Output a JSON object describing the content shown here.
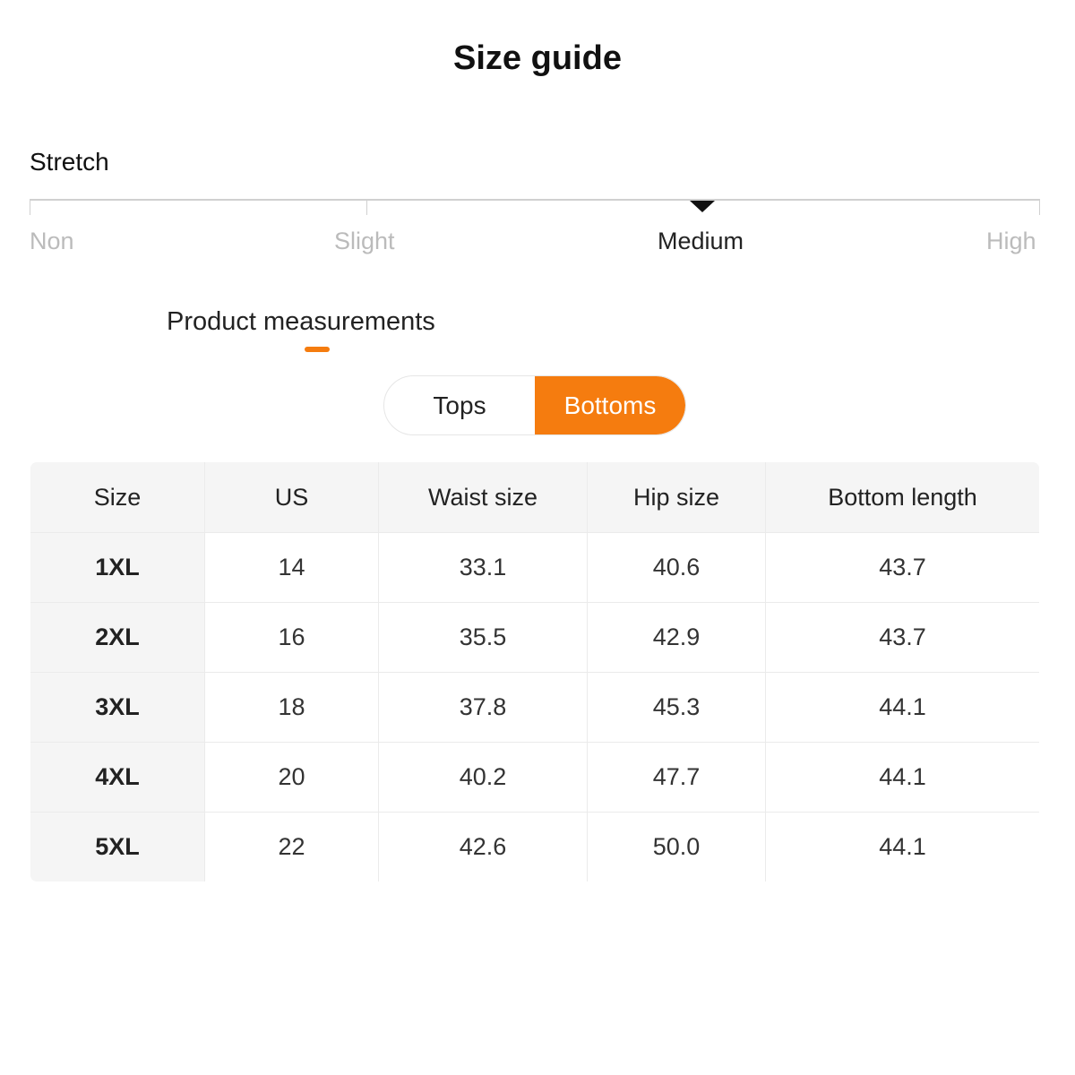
{
  "title": "Size guide",
  "stretch": {
    "label": "Stretch",
    "levels": [
      "Non",
      "Slight",
      "Medium",
      "High"
    ],
    "selected": "Medium"
  },
  "tabs": {
    "product_measurements": "Product measurements"
  },
  "toggle": {
    "options": [
      "Tops",
      "Bottoms"
    ],
    "selected": "Bottoms"
  },
  "colors": {
    "accent": "#f57c0f"
  },
  "table": {
    "headers": [
      "Size",
      "US",
      "Waist size",
      "Hip size",
      "Bottom length"
    ],
    "rows": [
      [
        "1XL",
        "14",
        "33.1",
        "40.6",
        "43.7"
      ],
      [
        "2XL",
        "16",
        "35.5",
        "42.9",
        "43.7"
      ],
      [
        "3XL",
        "18",
        "37.8",
        "45.3",
        "44.1"
      ],
      [
        "4XL",
        "20",
        "40.2",
        "47.7",
        "44.1"
      ],
      [
        "5XL",
        "22",
        "42.6",
        "50.0",
        "44.1"
      ]
    ]
  }
}
